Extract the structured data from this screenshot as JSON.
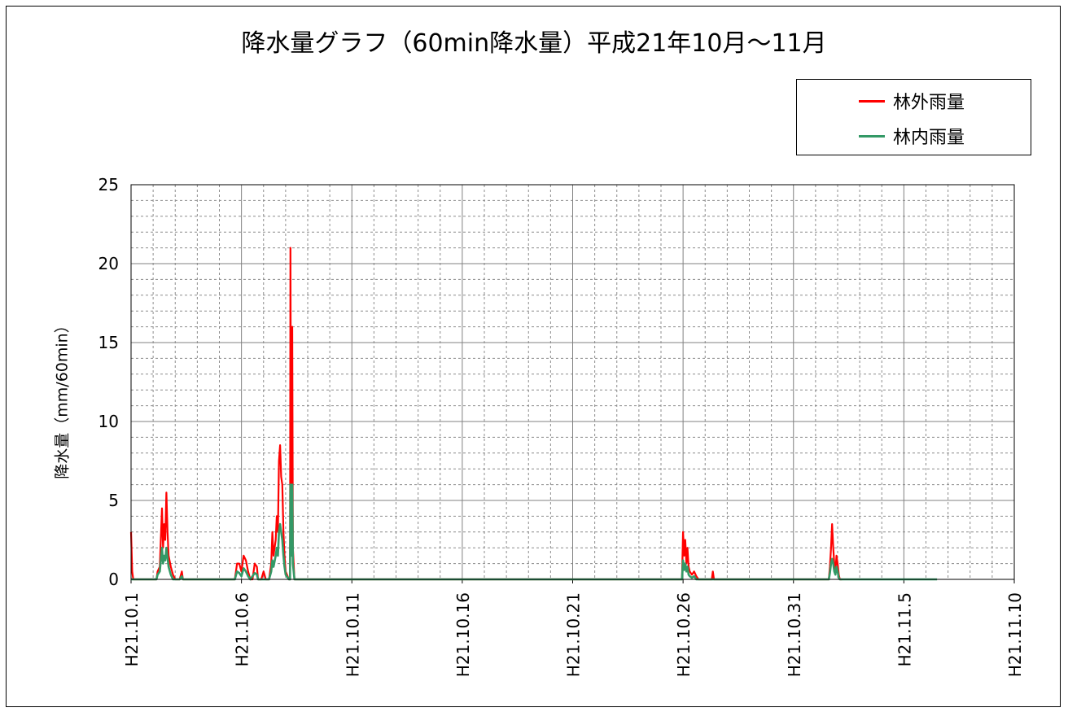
{
  "title": "降水量グラフ（60min降水量）平成21年10月～11月",
  "legend": [
    {
      "label": "林外雨量",
      "color": "#ff0000"
    },
    {
      "label": "林内雨量",
      "color": "#339966"
    }
  ],
  "chart_data": {
    "type": "line",
    "title": "降水量グラフ（60min降水量）平成21年10月～11月",
    "xlabel": "",
    "ylabel": "降水量（mm/60min）",
    "ylim": [
      0,
      25
    ],
    "yticks": [
      0,
      5,
      10,
      15,
      20,
      25
    ],
    "xlim": [
      0,
      40
    ],
    "x_unit": "days since H21.10.1",
    "xticks": [
      {
        "x": 0,
        "label": "H21.10.1"
      },
      {
        "x": 5,
        "label": "H21.10.6"
      },
      {
        "x": 10,
        "label": "H21.10.11"
      },
      {
        "x": 15,
        "label": "H21.10.16"
      },
      {
        "x": 20,
        "label": "H21.10.21"
      },
      {
        "x": 25,
        "label": "H21.10.26"
      },
      {
        "x": 30,
        "label": "H21.10.31"
      },
      {
        "x": 35,
        "label": "H21.11.5"
      },
      {
        "x": 40,
        "label": "H21.11.10"
      }
    ],
    "grid": "major solid, minor dashed",
    "legend_position": "top-right",
    "series": [
      {
        "name": "林外雨量",
        "color": "#ff0000",
        "points": [
          [
            0.0,
            3.0
          ],
          [
            0.05,
            0.5
          ],
          [
            0.1,
            0
          ],
          [
            1.15,
            0
          ],
          [
            1.2,
            0.5
          ],
          [
            1.3,
            0.8
          ],
          [
            1.4,
            4.5
          ],
          [
            1.45,
            2.0
          ],
          [
            1.5,
            3.5
          ],
          [
            1.55,
            2.5
          ],
          [
            1.6,
            5.5
          ],
          [
            1.65,
            3.0
          ],
          [
            1.7,
            1.5
          ],
          [
            1.8,
            0.8
          ],
          [
            1.9,
            0.3
          ],
          [
            2.0,
            0
          ],
          [
            2.2,
            0
          ],
          [
            2.3,
            0.5
          ],
          [
            2.35,
            0
          ],
          [
            4.7,
            0
          ],
          [
            4.8,
            1.0
          ],
          [
            4.9,
            1.0
          ],
          [
            5.0,
            0.5
          ],
          [
            5.1,
            1.5
          ],
          [
            5.2,
            1.2
          ],
          [
            5.3,
            0.5
          ],
          [
            5.4,
            0
          ],
          [
            5.5,
            0
          ],
          [
            5.6,
            1.0
          ],
          [
            5.7,
            0.8
          ],
          [
            5.75,
            0
          ],
          [
            5.9,
            0
          ],
          [
            6.0,
            0.5
          ],
          [
            6.1,
            0
          ],
          [
            6.25,
            0
          ],
          [
            6.35,
            1.0
          ],
          [
            6.4,
            3.0
          ],
          [
            6.45,
            1.5
          ],
          [
            6.55,
            2.5
          ],
          [
            6.6,
            4.0
          ],
          [
            6.65,
            3.0
          ],
          [
            6.7,
            7.5
          ],
          [
            6.75,
            8.5
          ],
          [
            6.8,
            6.5
          ],
          [
            6.85,
            6.0
          ],
          [
            6.9,
            3.0
          ],
          [
            6.95,
            1.5
          ],
          [
            7.0,
            0.5
          ],
          [
            7.15,
            0
          ],
          [
            7.2,
            0
          ],
          [
            7.22,
            21.0
          ],
          [
            7.25,
            3.0
          ],
          [
            7.3,
            16.0
          ],
          [
            7.33,
            2.0
          ],
          [
            7.4,
            0
          ],
          [
            7.55,
            0
          ],
          [
            24.95,
            0
          ],
          [
            25.0,
            3.0
          ],
          [
            25.05,
            1.5
          ],
          [
            25.1,
            2.5
          ],
          [
            25.15,
            1.0
          ],
          [
            25.2,
            2.0
          ],
          [
            25.25,
            0.8
          ],
          [
            25.3,
            0.5
          ],
          [
            25.4,
            0.3
          ],
          [
            25.5,
            0.5
          ],
          [
            25.6,
            0.2
          ],
          [
            25.7,
            0
          ],
          [
            26.3,
            0
          ],
          [
            26.35,
            0.5
          ],
          [
            26.4,
            0
          ],
          [
            31.6,
            0
          ],
          [
            31.65,
            0.8
          ],
          [
            31.7,
            2.0
          ],
          [
            31.75,
            3.5
          ],
          [
            31.8,
            2.0
          ],
          [
            31.85,
            1.0
          ],
          [
            31.9,
            0.5
          ],
          [
            31.95,
            1.5
          ],
          [
            32.0,
            1.0
          ],
          [
            32.05,
            0.3
          ],
          [
            32.1,
            0
          ],
          [
            32.2,
            0
          ]
        ]
      },
      {
        "name": "林内雨量",
        "color": "#339966",
        "points": [
          [
            0.0,
            0
          ],
          [
            1.15,
            0
          ],
          [
            1.2,
            0.3
          ],
          [
            1.3,
            0.5
          ],
          [
            1.4,
            2.0
          ],
          [
            1.45,
            1.0
          ],
          [
            1.5,
            1.5
          ],
          [
            1.55,
            1.2
          ],
          [
            1.6,
            2.0
          ],
          [
            1.7,
            0.8
          ],
          [
            1.8,
            0.3
          ],
          [
            1.9,
            0
          ],
          [
            2.2,
            0
          ],
          [
            2.3,
            0.2
          ],
          [
            2.35,
            0
          ],
          [
            4.7,
            0
          ],
          [
            4.8,
            0.5
          ],
          [
            4.9,
            0.4
          ],
          [
            5.0,
            0.2
          ],
          [
            5.1,
            0.7
          ],
          [
            5.2,
            0.5
          ],
          [
            5.3,
            0.2
          ],
          [
            5.4,
            0
          ],
          [
            5.6,
            0.4
          ],
          [
            5.7,
            0.3
          ],
          [
            5.75,
            0
          ],
          [
            6.25,
            0
          ],
          [
            6.35,
            0.5
          ],
          [
            6.4,
            1.2
          ],
          [
            6.45,
            0.8
          ],
          [
            6.55,
            1.5
          ],
          [
            6.6,
            2.0
          ],
          [
            6.65,
            1.5
          ],
          [
            6.7,
            3.0
          ],
          [
            6.75,
            3.5
          ],
          [
            6.8,
            3.0
          ],
          [
            6.85,
            2.5
          ],
          [
            6.9,
            1.5
          ],
          [
            6.95,
            0.8
          ],
          [
            7.0,
            0.3
          ],
          [
            7.15,
            0
          ],
          [
            7.2,
            0
          ],
          [
            7.22,
            6.0
          ],
          [
            7.25,
            1.5
          ],
          [
            7.3,
            6.0
          ],
          [
            7.33,
            1.0
          ],
          [
            7.4,
            0
          ],
          [
            24.95,
            0
          ],
          [
            25.0,
            1.2
          ],
          [
            25.05,
            0.6
          ],
          [
            25.1,
            1.0
          ],
          [
            25.15,
            0.5
          ],
          [
            25.2,
            0.8
          ],
          [
            25.25,
            0.3
          ],
          [
            25.3,
            0.2
          ],
          [
            25.4,
            0.1
          ],
          [
            25.5,
            0.2
          ],
          [
            25.6,
            0
          ],
          [
            31.6,
            0
          ],
          [
            31.65,
            0.4
          ],
          [
            31.7,
            1.0
          ],
          [
            31.75,
            1.3
          ],
          [
            31.8,
            1.0
          ],
          [
            31.85,
            0.5
          ],
          [
            31.9,
            0.3
          ],
          [
            31.95,
            0.8
          ],
          [
            32.0,
            0.5
          ],
          [
            32.05,
            0.1
          ],
          [
            32.1,
            0
          ],
          [
            36.5,
            0
          ]
        ]
      }
    ]
  }
}
